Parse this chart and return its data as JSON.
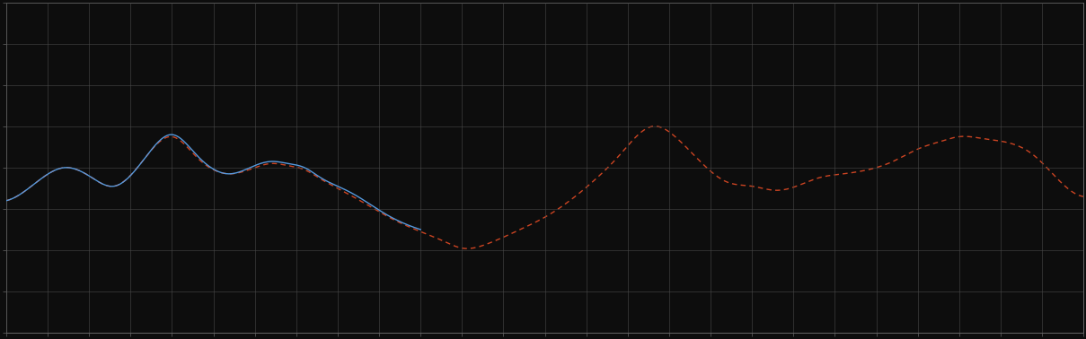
{
  "background_color": "#0d0d0d",
  "plot_bg_color": "#0d0d0d",
  "grid_color": "#4a4a4a",
  "line1_color": "#5599dd",
  "line2_color": "#cc4422",
  "xlim": [
    0,
    130
  ],
  "ylim": [
    0,
    8
  ],
  "grid_alpha": 0.8,
  "figsize": [
    12.09,
    3.78
  ],
  "dpi": 100,
  "spine_color": "#666666",
  "tick_color": "#666666",
  "n_xgrid": 26,
  "n_ygrid": 8
}
